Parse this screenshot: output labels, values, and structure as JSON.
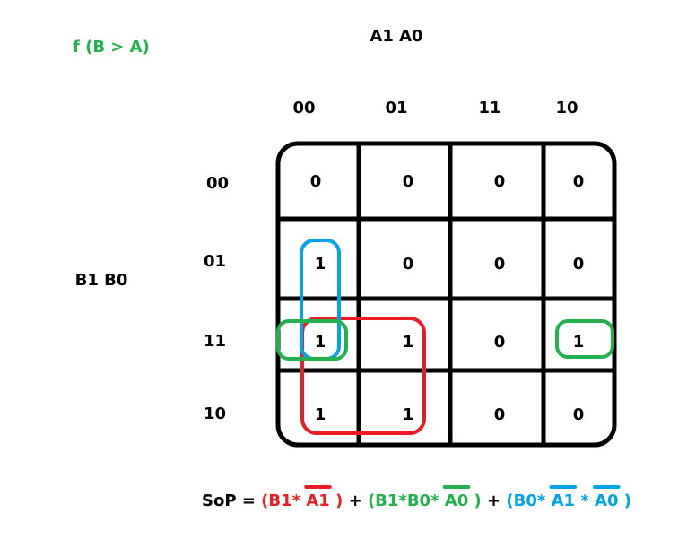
{
  "title": "f (B > A)",
  "col_var_label": "A1 A0",
  "row_var_label": "B1 B0",
  "col_headers": [
    "00",
    "01",
    "11",
    "10"
  ],
  "row_headers": [
    "00",
    "01",
    "11",
    "10"
  ],
  "cells": [
    [
      "0",
      "0",
      "0",
      "0"
    ],
    [
      "1",
      "0",
      "0",
      "0"
    ],
    [
      "1",
      "1",
      "0",
      "1"
    ],
    [
      "1",
      "1",
      "0",
      "0"
    ]
  ],
  "colors": {
    "title": "#22b14c",
    "grid": "#000000",
    "red": "#ed1c24",
    "green": "#22b14c",
    "blue": "#00a2e8"
  },
  "sop": {
    "prefix": "SoP = ",
    "plus": "+",
    "red": {
      "open": "(B1*",
      "bar": "A1",
      "close": ")"
    },
    "green": {
      "open": "(B1*B0*",
      "bar": "A0",
      "close": ")"
    },
    "blue": {
      "open": "(B0*",
      "bar1": "A1",
      "mid": "*",
      "bar2": "A0",
      "close": ")"
    }
  }
}
